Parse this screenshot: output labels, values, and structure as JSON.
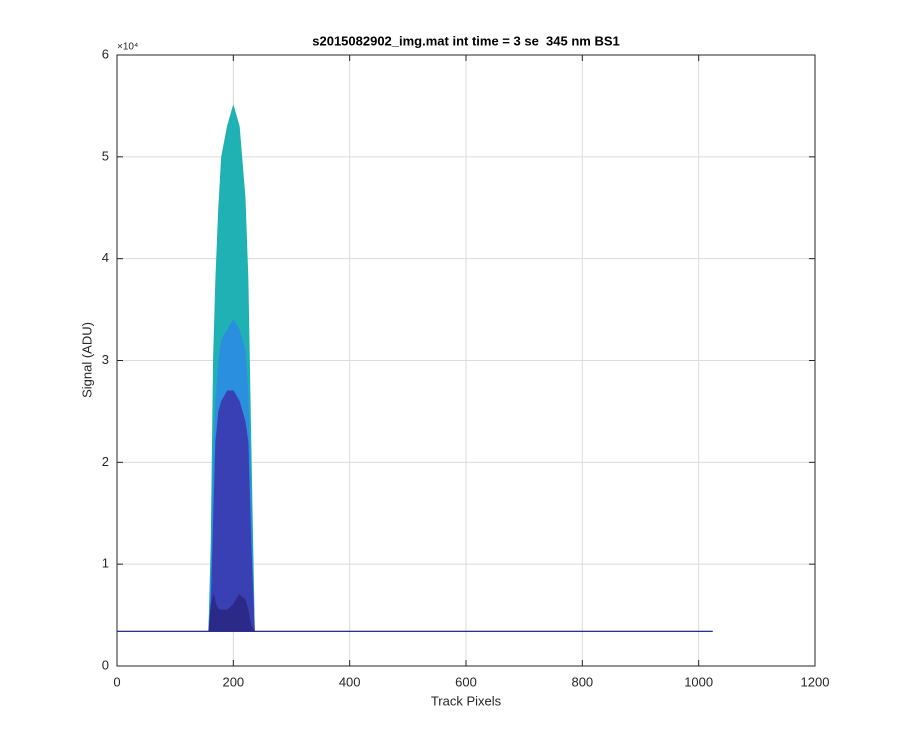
{
  "chart_data": {
    "type": "area",
    "title": "s2015082902_img.mat int time = 3 se  345 nm BS1",
    "x_label": "Track Pixels",
    "y_label": "Signal (ADU)",
    "y_multiplier": "×10⁴",
    "x": [
      0,
      150,
      158,
      162,
      166,
      170,
      175,
      180,
      190,
      200,
      210,
      220,
      225,
      230,
      236,
      240,
      250,
      400,
      600,
      800,
      1024
    ],
    "series": [
      {
        "color": "#1fb1b4",
        "values": [
          3400,
          3400,
          3400,
          12000,
          30000,
          38000,
          45000,
          50000,
          53000,
          55000,
          53000,
          46000,
          38000,
          22000,
          3400,
          3400,
          3400,
          3400,
          3400,
          3400,
          3400
        ]
      },
      {
        "color": "#2b8fe0",
        "values": [
          3400,
          3400,
          3400,
          9000,
          20000,
          26000,
          30000,
          32000,
          33000,
          34000,
          33000,
          31000,
          27000,
          18000,
          3400,
          3400,
          3400,
          3400,
          3400,
          3400,
          3400
        ]
      },
      {
        "color": "#3840b4",
        "values": [
          3400,
          3400,
          3400,
          6000,
          14000,
          22000,
          25000,
          26000,
          27000,
          27000,
          26000,
          24000,
          22000,
          12000,
          3400,
          3400,
          3400,
          3400,
          3400,
          3400,
          3400
        ]
      },
      {
        "color": "#2c2a88",
        "values": [
          3400,
          3400,
          3400,
          6000,
          7000,
          6000,
          5500,
          5500,
          5500,
          6000,
          7000,
          6500,
          5500,
          4000,
          3400,
          3400,
          3400,
          3400,
          3400,
          3400,
          3400
        ]
      }
    ],
    "xlim": [
      0,
      1200
    ],
    "xticks": [
      0,
      200,
      400,
      600,
      800,
      1000,
      1200
    ],
    "ylim": [
      0,
      60000
    ],
    "yticks": [
      {
        "value": 0,
        "label": "0"
      },
      {
        "value": 10000,
        "label": "1"
      },
      {
        "value": 20000,
        "label": "2"
      },
      {
        "value": 30000,
        "label": "3"
      },
      {
        "value": 40000,
        "label": "4"
      },
      {
        "value": 50000,
        "label": "5"
      },
      {
        "value": 60000,
        "label": "6"
      }
    ],
    "grid": true
  }
}
